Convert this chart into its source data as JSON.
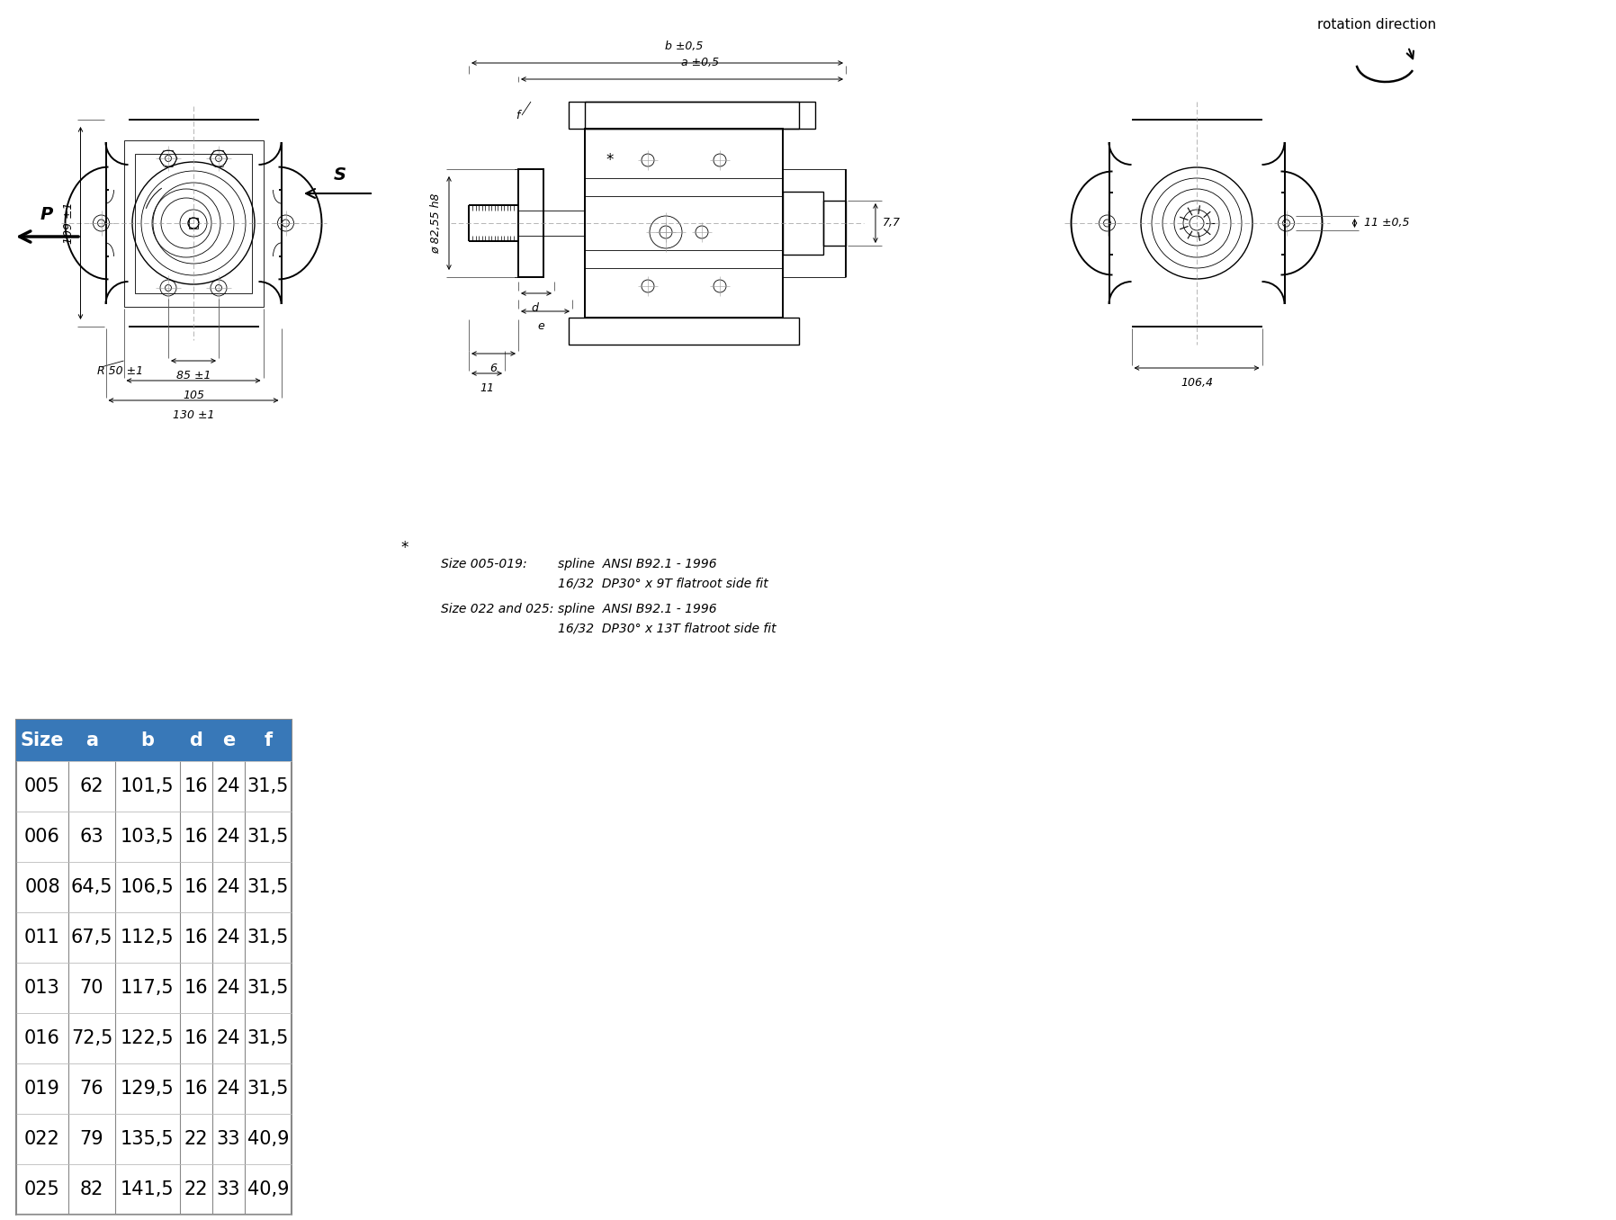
{
  "table_headers": [
    "Size",
    "a",
    "b",
    "d",
    "e",
    "f"
  ],
  "table_data": [
    [
      "005",
      "62",
      "101,5",
      "16",
      "24",
      "31,5"
    ],
    [
      "006",
      "63",
      "103,5",
      "16",
      "24",
      "31,5"
    ],
    [
      "008",
      "64,5",
      "106,5",
      "16",
      "24",
      "31,5"
    ],
    [
      "011",
      "67,5",
      "112,5",
      "16",
      "24",
      "31,5"
    ],
    [
      "013",
      "70",
      "117,5",
      "16",
      "24",
      "31,5"
    ],
    [
      "016",
      "72,5",
      "122,5",
      "16",
      "24",
      "31,5"
    ],
    [
      "019",
      "76",
      "129,5",
      "16",
      "24",
      "31,5"
    ],
    [
      "022",
      "79",
      "135,5",
      "22",
      "33",
      "40,9"
    ],
    [
      "025",
      "82",
      "141,5",
      "22",
      "33",
      "40,9"
    ]
  ],
  "header_bg": "#3878b8",
  "header_fg": "#ffffff",
  "note_star": "*",
  "note_line2a": "Size 005-019:",
  "note_line2b": "spline  ANSI B92.1 - 1996",
  "note_line3": "16/32  DP30° x 9T flatroot side fit",
  "note_line4a": "Size 022 and 025:",
  "note_line4b": "spline  ANSI B92.1 - 1996",
  "note_line5": "16/32  DP30° x 13T flatroot side fit",
  "rotation_label": "rotation direction",
  "dim_109": "109 ±1",
  "dim_85": "85 ±1",
  "dim_105": "105",
  "dim_130": "130 ±1",
  "dim_R50": "R 50 ±1",
  "dim_P": "P",
  "dim_S": "S",
  "dim_b": "b ±0,5",
  "dim_a": "a ±0,5",
  "dim_7_7": "7,7",
  "dim_11": "11 ±0,5",
  "dim_82_55": "ø 82,55 h8",
  "dim_6": "6",
  "dim_11b": "11",
  "dim_106_4": "106,4",
  "dim_d": "d",
  "dim_e": "e",
  "dim_f": "f",
  "dim_star": "*"
}
